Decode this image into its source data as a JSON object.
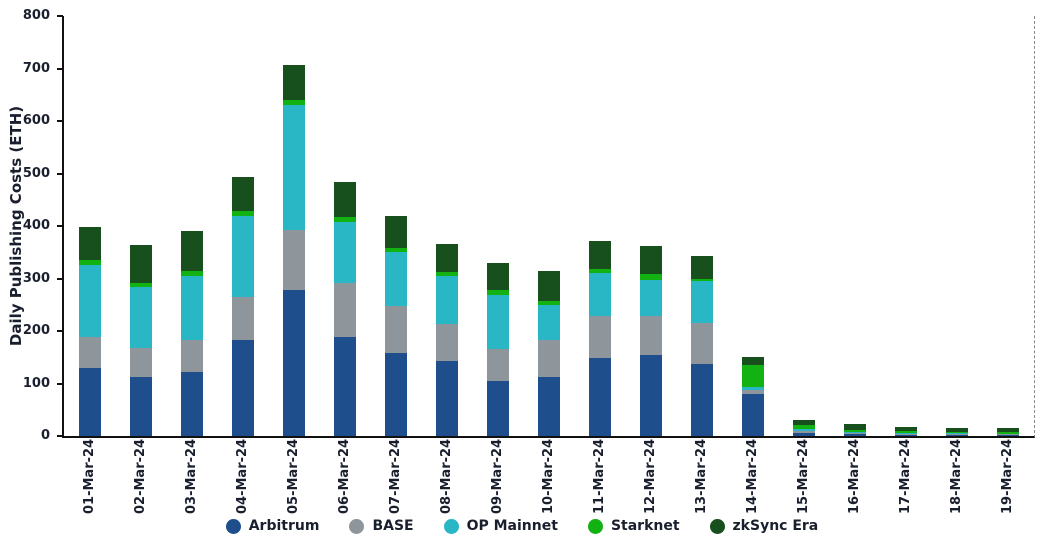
{
  "chart_data": {
    "type": "bar",
    "stacked": true,
    "title": "",
    "xlabel": "",
    "ylabel": "Daily Publishing Costs (ETH)",
    "ylim": [
      0,
      800
    ],
    "yticks": [
      0,
      100,
      200,
      300,
      400,
      500,
      600,
      700,
      800
    ],
    "grid": false,
    "legend_position": "bottom",
    "categories": [
      "01-Mar-24",
      "02-Mar-24",
      "03-Mar-24",
      "04-Mar-24",
      "05-Mar-24",
      "06-Mar-24",
      "07-Mar-24",
      "08-Mar-24",
      "09-Mar-24",
      "10-Mar-24",
      "11-Mar-24",
      "12-Mar-24",
      "13-Mar-24",
      "14-Mar-24",
      "15-Mar-24",
      "16-Mar-24",
      "17-Mar-24",
      "18-Mar-24",
      "19-Mar-24"
    ],
    "series": [
      {
        "name": "Arbitrum",
        "color": "#1f4e8c",
        "values": [
          130,
          112,
          122,
          183,
          278,
          188,
          158,
          143,
          105,
          113,
          148,
          155,
          138,
          80,
          6,
          3,
          2,
          2,
          2
        ]
      },
      {
        "name": "BASE",
        "color": "#8e959b",
        "values": [
          58,
          56,
          60,
          82,
          115,
          104,
          89,
          70,
          60,
          70,
          80,
          73,
          77,
          8,
          3,
          2,
          1,
          1,
          1
        ]
      },
      {
        "name": "OP Mainnet",
        "color": "#29b7c6",
        "values": [
          137,
          115,
          123,
          155,
          237,
          116,
          103,
          92,
          103,
          67,
          82,
          70,
          80,
          5,
          4,
          2,
          2,
          2,
          1
        ]
      },
      {
        "name": "Starknet",
        "color": "#12b212",
        "values": [
          10,
          9,
          10,
          8,
          10,
          10,
          8,
          7,
          10,
          8,
          8,
          10,
          5,
          42,
          8,
          5,
          4,
          3,
          3
        ]
      },
      {
        "name": "zkSync Era",
        "color": "#174f1d",
        "values": [
          63,
          71,
          75,
          66,
          66,
          66,
          62,
          53,
          52,
          57,
          54,
          54,
          43,
          15,
          9,
          10,
          9,
          8,
          8
        ]
      }
    ]
  }
}
